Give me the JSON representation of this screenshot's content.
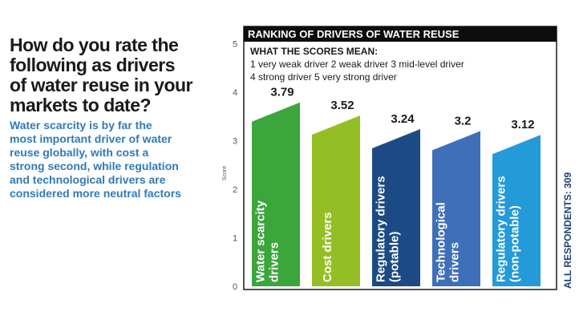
{
  "question": "How do you rate the\nfollowing as drivers\nof water reuse in your\nmarkets to date?",
  "subtext": "Water scarcity is by far the\nmost important driver of water\nreuse globally, with cost a\nstrong second, while regulation\nand technological drivers are\nconsidered more neutral factors",
  "colors": {
    "title_bg": "#0d0d0d",
    "frame": "#1a1a1a",
    "bars": [
      "#3aa63c",
      "#93bf24",
      "#1c4a84",
      "#3f6fb8",
      "#249ad8"
    ]
  },
  "chart_data": {
    "type": "bar",
    "title": "RANKING OF DRIVERS OF WATER REUSE",
    "legend_heading": "WHAT THE SCORES MEAN:",
    "legend_lines": [
      "1 very weak driver  2 weak driver  3 mid-level driver",
      "4 strong driver  5 very strong driver"
    ],
    "ylabel": "Score",
    "side_note": "ALL RESPONDENTS: 309",
    "ylim": [
      0,
      5
    ],
    "yticks": [
      0,
      1,
      2,
      3,
      4,
      5
    ],
    "categories": [
      [
        "Water scarcity",
        "drivers"
      ],
      [
        "Cost drivers"
      ],
      [
        "Regulatory drivers",
        "(potable)"
      ],
      [
        "Technological",
        "drivers"
      ],
      [
        "Regulatory drivers",
        "(non-potable)"
      ]
    ],
    "values": [
      3.79,
      3.52,
      3.24,
      3.2,
      3.12
    ],
    "value_labels": [
      "3.79",
      "3.52",
      "3.24",
      "3.2",
      "3.12"
    ],
    "grid": false
  }
}
